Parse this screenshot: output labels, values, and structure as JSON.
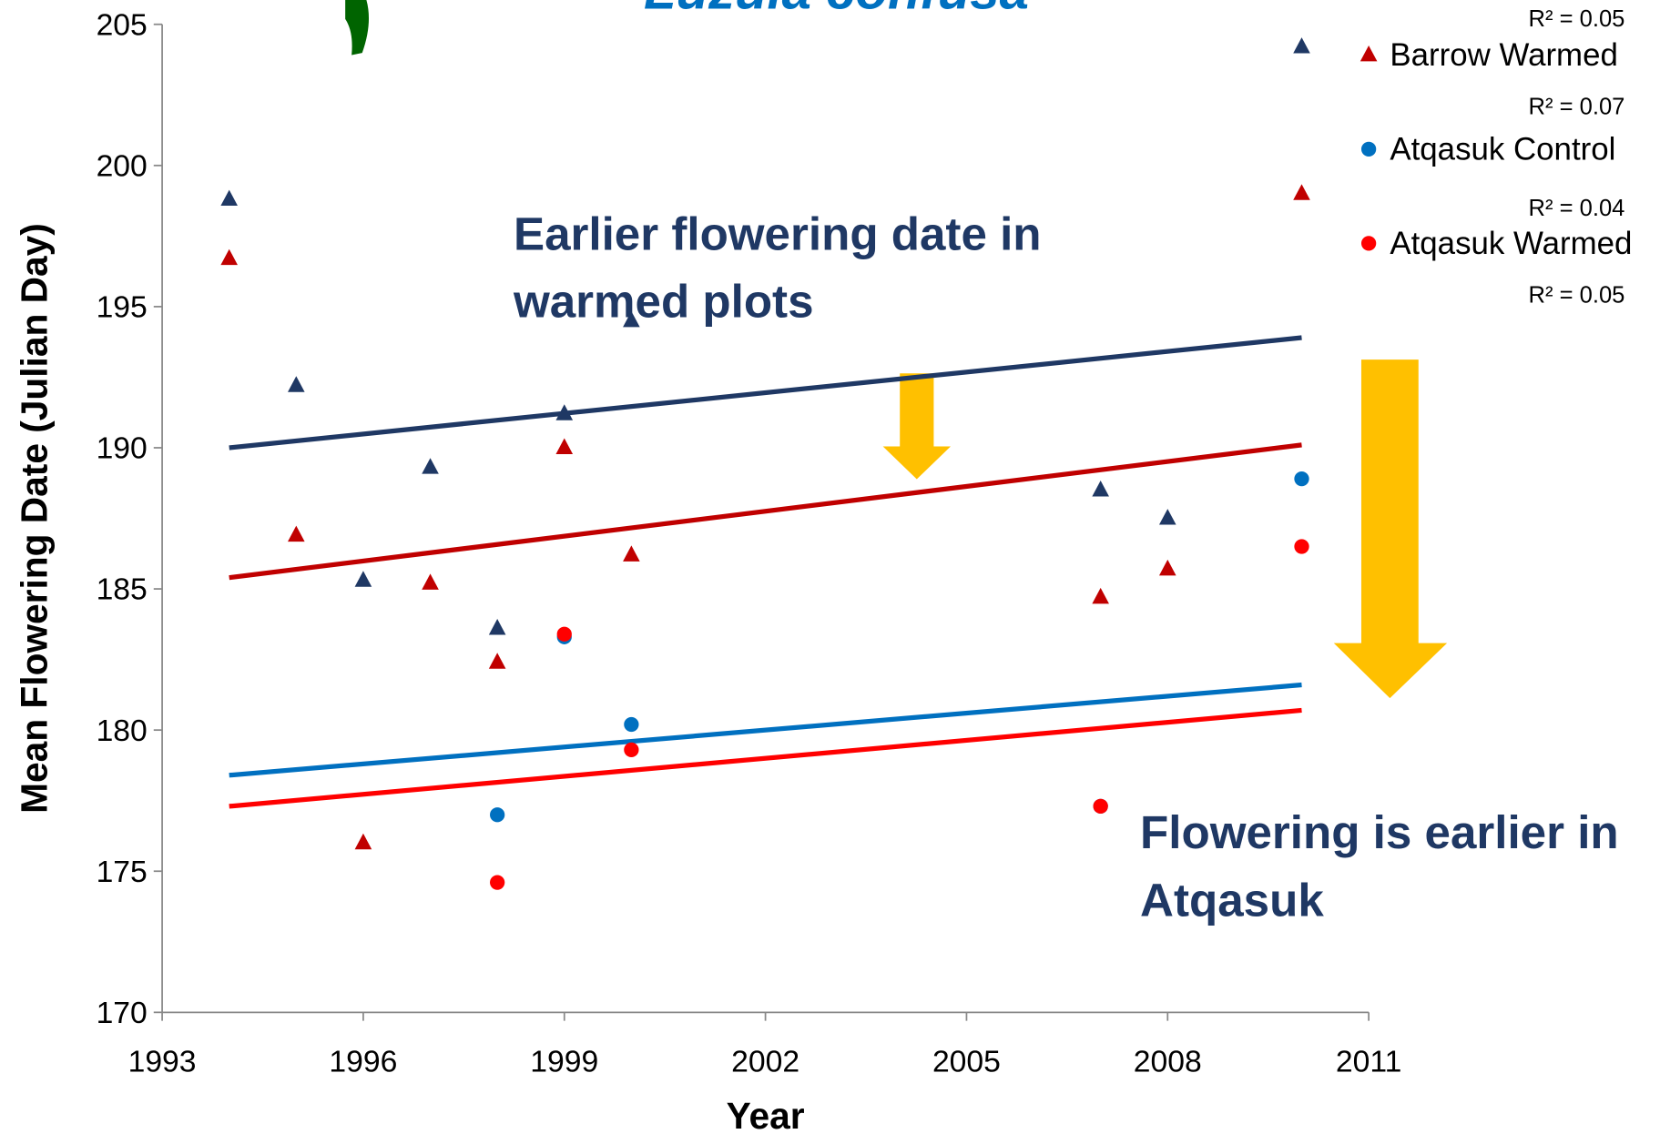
{
  "chart_data": {
    "type": "scatter",
    "title": "Luzula confusa",
    "xlabel": "Year",
    "ylabel": "Mean Flowering Date (Julian Day)",
    "xlim": [
      1993,
      2011
    ],
    "xticks": [
      1993,
      1996,
      1999,
      2002,
      2005,
      2008,
      2011
    ],
    "ylim": [
      170,
      205
    ],
    "yticks": [
      170,
      175,
      180,
      185,
      190,
      195,
      200,
      205
    ],
    "x": [
      1994,
      1995,
      1996,
      1997,
      1998,
      1999,
      2000,
      2007,
      2008,
      2010
    ],
    "trend_x": [
      1994,
      2010
    ],
    "series": [
      {
        "color": "#1f3864",
        "marker": "triangle",
        "r2_label": "R² = 0.05",
        "values": [
          198.8,
          192.2,
          185.3,
          189.3,
          183.6,
          191.2,
          194.5,
          188.5,
          187.5,
          204.2
        ],
        "trend": [
          190.0,
          193.9
        ]
      },
      {
        "name": "Barrow Warmed",
        "color": "#c00000",
        "marker": "triangle",
        "r2_label": "R² = 0.07",
        "values": [
          196.7,
          186.9,
          176.0,
          185.2,
          182.4,
          190.0,
          186.2,
          184.7,
          185.7,
          199.0
        ],
        "trend": [
          185.4,
          190.1
        ]
      },
      {
        "name": "Atqasuk Control",
        "color": "#0070c0",
        "marker": "circle",
        "r2_label": "R² = 0.04",
        "values": [
          null,
          null,
          null,
          null,
          177.0,
          183.3,
          180.2,
          177.3,
          null,
          188.9
        ],
        "trend": [
          178.4,
          181.6
        ]
      },
      {
        "name": "Atqasuk Warmed",
        "color": "#ff0000",
        "marker": "circle",
        "r2_label": "R² = 0.05",
        "values": [
          null,
          null,
          null,
          null,
          174.6,
          183.4,
          179.3,
          177.3,
          null,
          186.5
        ],
        "trend": [
          177.3,
          180.7
        ]
      }
    ],
    "annotations": [
      [
        "Earlier flowering date in",
        "warmed plots"
      ],
      [
        "Flowering is earlier in",
        "Atqasuk"
      ]
    ]
  }
}
